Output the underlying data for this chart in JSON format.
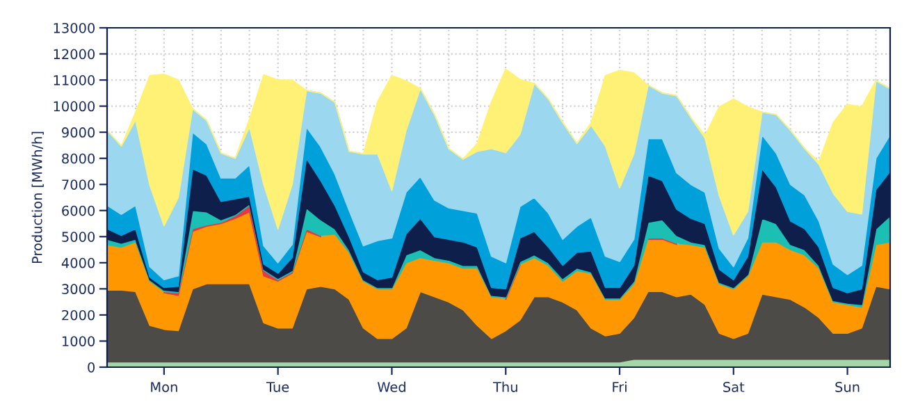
{
  "chart_data": {
    "type": "area",
    "stacked": true,
    "ylabel": "Production [MWh/h]",
    "categories": [
      null,
      null,
      null,
      null,
      "Mon",
      null,
      null,
      null,
      null,
      null,
      null,
      null,
      "Tue",
      null,
      null,
      null,
      null,
      null,
      null,
      null,
      "Wed",
      null,
      null,
      null,
      null,
      null,
      null,
      null,
      "Thu",
      null,
      null,
      null,
      null,
      null,
      null,
      null,
      "Fri",
      null,
      null,
      null,
      null,
      null,
      null,
      null,
      "Sat",
      null,
      null,
      null,
      null,
      null,
      null,
      null,
      "Sun",
      null,
      null,
      null
    ],
    "ylim": [
      0,
      13000
    ],
    "yticks": [
      0,
      1000,
      2000,
      3000,
      4000,
      5000,
      6000,
      7000,
      8000,
      9000,
      10000,
      11000,
      12000,
      13000
    ],
    "grid": true,
    "series": [
      {
        "color": "#a5d6a7",
        "values": [
          200,
          200,
          200,
          200,
          200,
          200,
          200,
          200,
          200,
          200,
          200,
          200,
          200,
          200,
          200,
          200,
          200,
          200,
          200,
          200,
          200,
          200,
          200,
          200,
          200,
          200,
          200,
          200,
          200,
          200,
          200,
          200,
          200,
          200,
          200,
          200,
          200,
          300,
          300,
          300,
          300,
          300,
          300,
          300,
          300,
          300,
          300,
          300,
          300,
          300,
          300,
          300,
          300,
          300,
          300,
          300
        ]
      },
      {
        "color": "#4d4b47",
        "values": [
          2750,
          2750,
          2700,
          1400,
          1250,
          1200,
          2800,
          3000,
          3000,
          3000,
          3000,
          1500,
          1300,
          1300,
          2800,
          2900,
          2800,
          2400,
          1300,
          900,
          900,
          1300,
          2700,
          2500,
          2300,
          2000,
          1400,
          900,
          1200,
          1600,
          2500,
          2500,
          2300,
          2000,
          1300,
          1000,
          1100,
          1600,
          2600,
          2600,
          2400,
          2500,
          2100,
          1000,
          800,
          1000,
          2500,
          2400,
          2300,
          2000,
          1600,
          1000,
          1000,
          1200,
          2800,
          2700
        ]
      },
      {
        "color": "#ff9800",
        "values": [
          1750,
          1650,
          1900,
          1700,
          1400,
          1350,
          2200,
          2200,
          2300,
          2500,
          2750,
          1800,
          1800,
          2100,
          2200,
          1900,
          2100,
          1800,
          1800,
          1900,
          1900,
          2500,
          1300,
          1400,
          1500,
          1600,
          2200,
          1600,
          1200,
          2100,
          1500,
          1200,
          800,
          1500,
          2100,
          1400,
          1300,
          1300,
          2000,
          2000,
          2000,
          1900,
          2200,
          1900,
          1900,
          2200,
          2000,
          2100,
          1900,
          2000,
          1900,
          1200,
          1100,
          800,
          1600,
          1800
        ]
      },
      {
        "color": "#e53945",
        "values": [
          null,
          null,
          null,
          null,
          50,
          100,
          100,
          50,
          50,
          100,
          250,
          200,
          50,
          50,
          100,
          50,
          null,
          null,
          null,
          null,
          null,
          null,
          null,
          null,
          null,
          null,
          null,
          null,
          50,
          50,
          null,
          null,
          null,
          null,
          null,
          null,
          null,
          null,
          50,
          50,
          50,
          null,
          null,
          null,
          null,
          null,
          null,
          null,
          null,
          null,
          null,
          null,
          null,
          null,
          null,
          null
        ]
      },
      {
        "color": "#1bbfb4",
        "values": [
          200,
          150,
          100,
          50,
          50,
          50,
          700,
          500,
          100,
          50,
          50,
          50,
          50,
          50,
          800,
          600,
          200,
          100,
          50,
          50,
          50,
          300,
          300,
          100,
          100,
          100,
          100,
          50,
          50,
          100,
          100,
          100,
          100,
          100,
          50,
          50,
          50,
          100,
          600,
          700,
          300,
          100,
          100,
          50,
          50,
          50,
          900,
          700,
          200,
          200,
          100,
          50,
          50,
          100,
          600,
          1000
        ]
      },
      {
        "color": "#0f1f4b",
        "values": [
          400,
          300,
          400,
          100,
          100,
          200,
          1600,
          1400,
          700,
          600,
          300,
          200,
          200,
          500,
          1900,
          1500,
          900,
          500,
          300,
          300,
          400,
          800,
          1200,
          800,
          800,
          900,
          700,
          300,
          300,
          900,
          900,
          600,
          500,
          600,
          800,
          400,
          400,
          600,
          1800,
          1500,
          1000,
          900,
          800,
          500,
          300,
          700,
          1900,
          1400,
          900,
          800,
          700,
          500,
          400,
          600,
          1500,
          1700
        ]
      },
      {
        "color": "#00a0db",
        "values": [
          900,
          800,
          900,
          400,
          300,
          400,
          1400,
          1200,
          900,
          800,
          1200,
          700,
          400,
          500,
          1200,
          1300,
          1200,
          1000,
          1000,
          1500,
          1500,
          1600,
          1600,
          1400,
          1200,
          1200,
          1300,
          1200,
          1000,
          1200,
          1300,
          1300,
          1000,
          1000,
          1300,
          1200,
          1000,
          1000,
          1400,
          1600,
          1400,
          1300,
          1200,
          800,
          500,
          700,
          1300,
          1300,
          1400,
          1300,
          1000,
          900,
          700,
          900,
          1200,
          1400
        ]
      },
      {
        "color": "#9bd8f0",
        "values": [
          2870,
          2620,
          3270,
          3120,
          2070,
          3000,
          900,
          900,
          950,
          750,
          1450,
          2350,
          1300,
          2300,
          1400,
          2050,
          2750,
          2270,
          3520,
          3320,
          1820,
          2370,
          3370,
          3270,
          2270,
          1970,
          2370,
          4120,
          4220,
          2770,
          4370,
          4370,
          4470,
          3170,
          3520,
          4220,
          2820,
          3270,
          2050,
          1750,
          2950,
          2570,
          2070,
          2020,
          1220,
          1020,
          870,
          1470,
          2070,
          1770,
          2170,
          2720,
          2420,
          1970,
          2970,
          1770
        ]
      },
      {
        "color": "#fff176",
        "values": [
          0,
          0,
          300,
          4200,
          5800,
          4500,
          0,
          0,
          0,
          0,
          300,
          4200,
          5700,
          4000,
          0,
          0,
          0,
          0,
          0,
          2000,
          4400,
          1900,
          0,
          0,
          0,
          0,
          300,
          1800,
          3200,
          2100,
          0,
          0,
          0,
          0,
          100,
          2700,
          4500,
          3100,
          0,
          0,
          0,
          0,
          100,
          3400,
          5200,
          4000,
          0,
          0,
          0,
          0,
          100,
          2700,
          4100,
          4100,
          0,
          0
        ]
      }
    ]
  }
}
